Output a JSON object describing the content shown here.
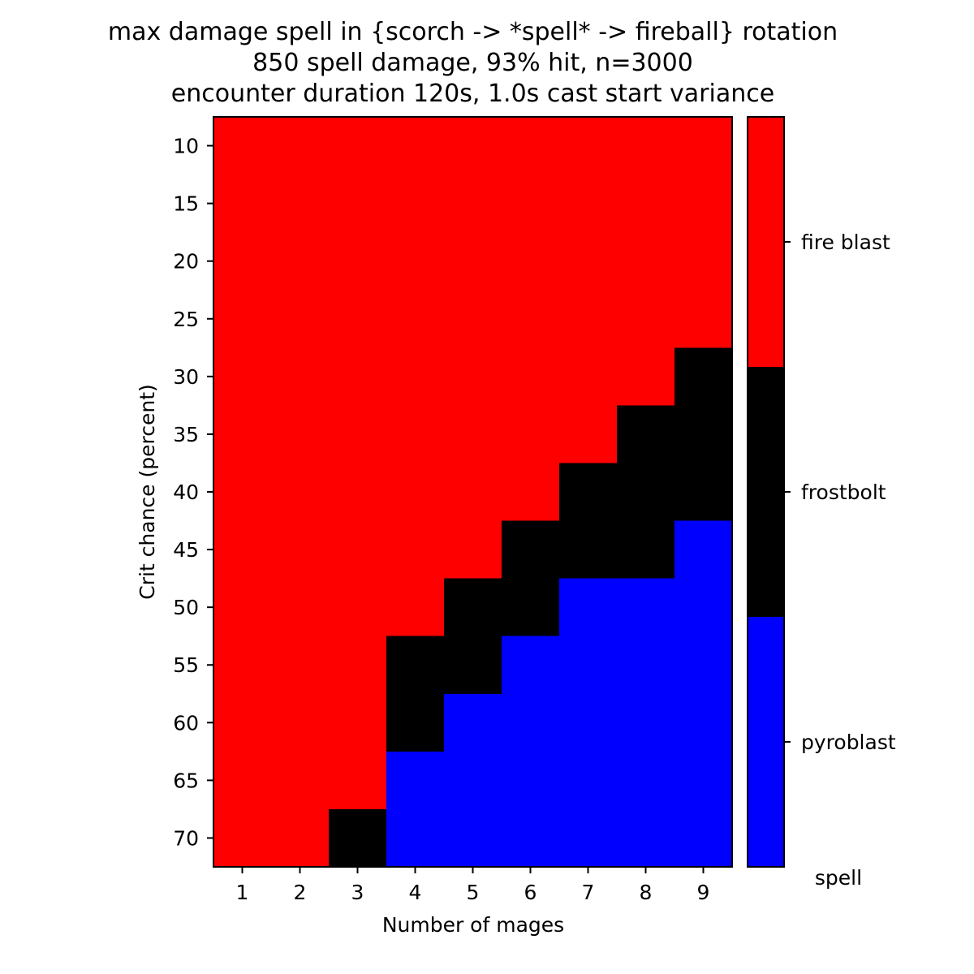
{
  "chart_data": {
    "type": "heatmap",
    "title": [
      "max damage spell in {scorch -> *spell* -> fireball} rotation",
      "850  spell damage, 93% hit, n=3000",
      "encounter duration 120s, 1.0s cast start variance"
    ],
    "xlabel": "Number of mages",
    "ylabel": "Crit chance (percent)",
    "x": [
      1,
      2,
      3,
      4,
      5,
      6,
      7,
      8,
      9
    ],
    "y": [
      8,
      10,
      12,
      14,
      16,
      18,
      20,
      22,
      24,
      26,
      28,
      30,
      32,
      34,
      36,
      38,
      40,
      42,
      44,
      46,
      48,
      50,
      52,
      54,
      56,
      58,
      60,
      62,
      64,
      66,
      68,
      70,
      72
    ],
    "x_ticks": [
      1,
      2,
      3,
      4,
      5,
      6,
      7,
      8,
      9
    ],
    "y_ticks": [
      10,
      15,
      20,
      25,
      30,
      35,
      40,
      45,
      50,
      55,
      60,
      65,
      70
    ],
    "xlim": [
      0.5,
      9.5
    ],
    "ylim": [
      72.5,
      7.5
    ],
    "categories": [
      "pyroblast",
      "frostbolt",
      "fire blast"
    ],
    "colors": {
      "pyroblast": "#0000ff",
      "frostbolt": "#000000",
      "fire blast": "#ff0000"
    },
    "colorbar_label": "spell",
    "regions": [
      {
        "mages": 1,
        "frostbolt_from_crit": null,
        "pyroblast_from_crit": null
      },
      {
        "mages": 2,
        "frostbolt_from_crit": null,
        "pyroblast_from_crit": null
      },
      {
        "mages": 3,
        "frostbolt_from_crit": 67.5,
        "pyroblast_from_crit": null
      },
      {
        "mages": 4,
        "frostbolt_from_crit": 52.5,
        "pyroblast_from_crit": 62.5
      },
      {
        "mages": 5,
        "frostbolt_from_crit": 47.5,
        "pyroblast_from_crit": 57.5
      },
      {
        "mages": 6,
        "frostbolt_from_crit": 42.5,
        "pyroblast_from_crit": 52.5
      },
      {
        "mages": 7,
        "frostbolt_from_crit": 37.5,
        "pyroblast_from_crit": 47.5
      },
      {
        "mages": 8,
        "frostbolt_from_crit": 32.5,
        "pyroblast_from_crit": 47.5
      },
      {
        "mages": 9,
        "frostbolt_from_crit": 27.5,
        "pyroblast_from_crit": 42.5
      }
    ]
  }
}
